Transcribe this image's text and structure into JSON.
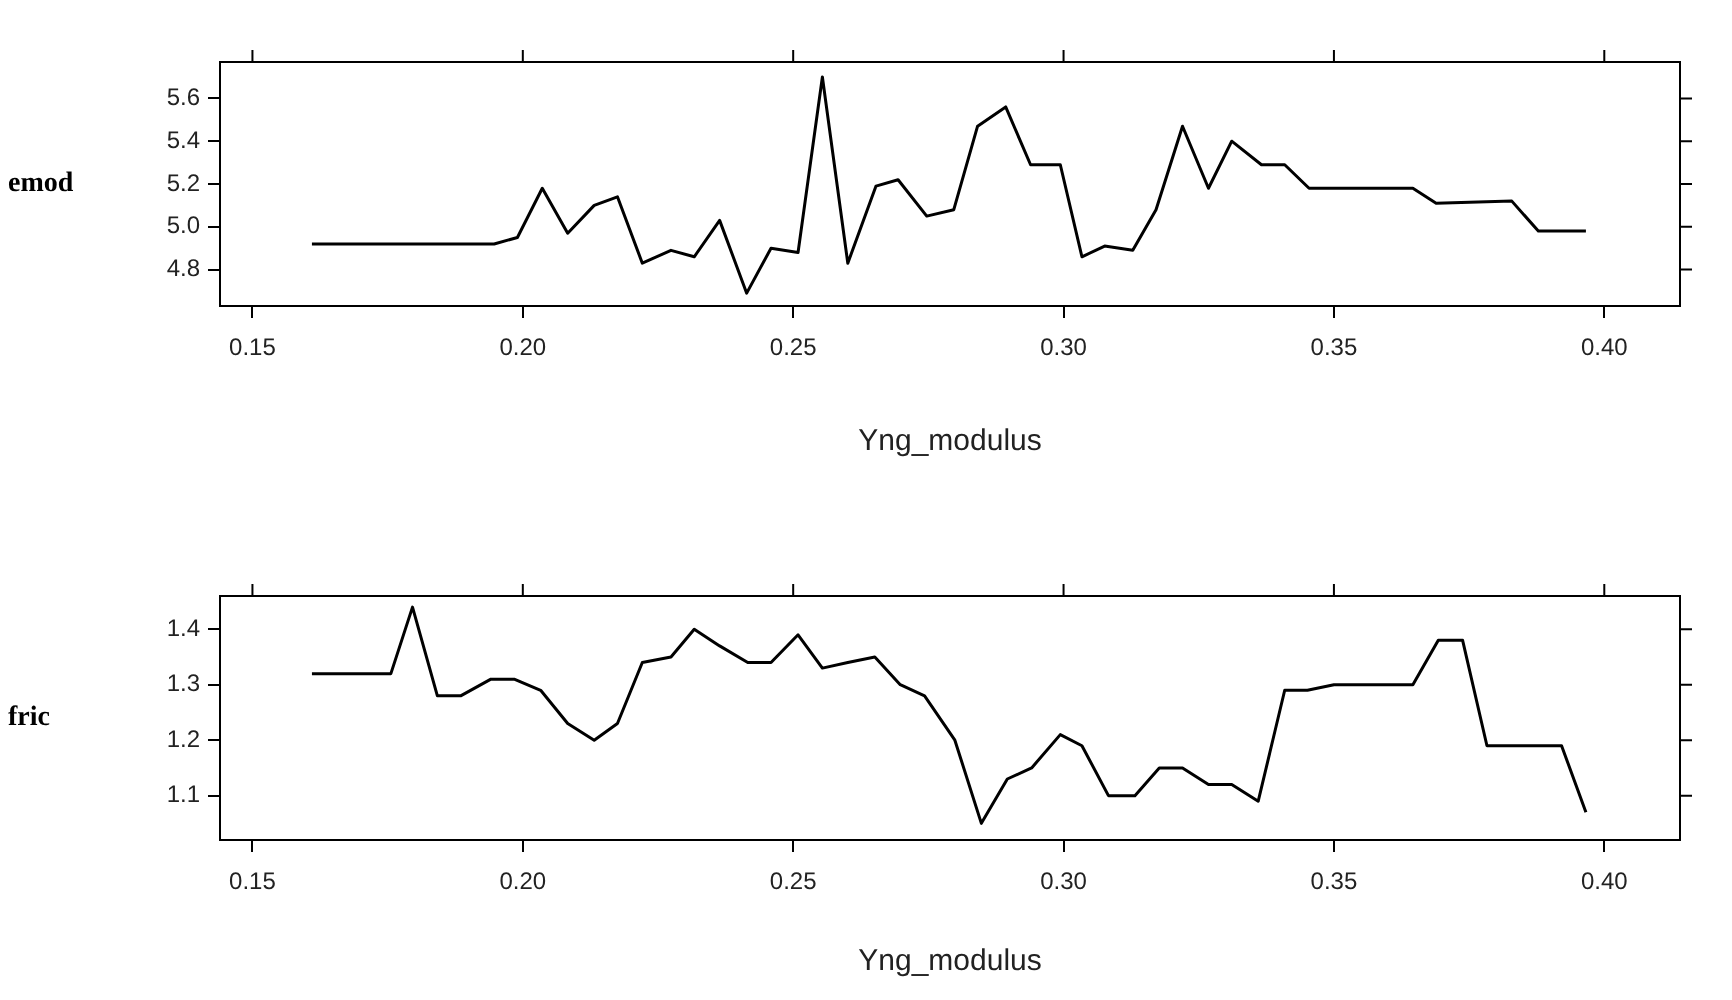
{
  "chart_data": [
    {
      "type": "line",
      "xlabel": "Yng_modulus",
      "ylabel": "emod",
      "color": "#000000",
      "xlim": [
        0.144,
        0.414
      ],
      "ylim": [
        4.63,
        5.77
      ],
      "xticks": [
        0.15,
        {
          "value": 0.2,
          "label": "0.20"
        },
        0.25,
        {
          "value": 0.3,
          "label": "0.30"
        },
        0.35,
        {
          "value": 0.4,
          "label": "0.40"
        }
      ],
      "yticks": [
        4.8,
        {
          "value": 5,
          "label": "5.0"
        },
        5.2,
        5.4,
        5.6
      ],
      "x": [
        0.161,
        0.1947,
        0.199,
        0.2036,
        0.2083,
        0.2132,
        0.2175,
        0.2221,
        0.2274,
        0.2317,
        0.2364,
        0.2414,
        0.2459,
        0.2509,
        0.2554,
        0.2601,
        0.2653,
        0.2694,
        0.2747,
        0.2797,
        0.2841,
        0.2893,
        0.2939,
        0.2994,
        0.3034,
        0.3076,
        0.3128,
        0.3171,
        0.322,
        0.3268,
        0.3311,
        0.3366,
        0.3409,
        0.3454,
        0.3646,
        0.3689,
        0.3829,
        0.3878,
        0.3966
      ],
      "values": [
        4.92,
        4.92,
        4.95,
        5.18,
        4.97,
        5.1,
        5.14,
        4.83,
        4.89,
        4.86,
        5.03,
        4.69,
        4.9,
        4.88,
        5.7,
        4.83,
        5.19,
        5.22,
        5.05,
        5.08,
        5.47,
        5.56,
        5.29,
        5.29,
        4.86,
        4.91,
        4.89,
        5.08,
        5.47,
        5.18,
        5.4,
        5.29,
        5.29,
        5.18,
        5.18,
        5.11,
        5.12,
        4.98,
        4.98
      ]
    },
    {
      "type": "line",
      "xlabel": "Yng_modulus",
      "ylabel": "fric",
      "color": "#000000",
      "xlim": [
        0.144,
        0.414
      ],
      "ylim": [
        1.02,
        1.46
      ],
      "xticks": [
        0.15,
        {
          "value": 0.2,
          "label": "0.20"
        },
        0.25,
        {
          "value": 0.3,
          "label": "0.30"
        },
        0.35,
        {
          "value": 0.4,
          "label": "0.40"
        }
      ],
      "yticks": [
        1.1,
        1.2,
        1.3,
        1.4
      ],
      "x": [
        0.161,
        0.1756,
        0.1796,
        0.1842,
        0.1885,
        0.1941,
        0.1984,
        0.2033,
        0.2083,
        0.2132,
        0.2175,
        0.2221,
        0.2274,
        0.2317,
        0.2364,
        0.2416,
        0.2459,
        0.2509,
        0.2554,
        0.2601,
        0.2651,
        0.2698,
        0.2743,
        0.2799,
        0.2848,
        0.2896,
        0.2941,
        0.2994,
        0.3034,
        0.3083,
        0.3132,
        0.3177,
        0.322,
        0.3268,
        0.3311,
        0.336,
        0.3409,
        0.3451,
        0.35,
        0.3549,
        0.3646,
        0.3693,
        0.3738,
        0.3783,
        0.3921,
        0.3966
      ],
      "values": [
        1.32,
        1.32,
        1.44,
        1.28,
        1.28,
        1.31,
        1.31,
        1.29,
        1.23,
        1.2,
        1.23,
        1.34,
        1.35,
        1.4,
        1.37,
        1.34,
        1.34,
        1.39,
        1.33,
        1.34,
        1.35,
        1.3,
        1.28,
        1.2,
        1.05,
        1.13,
        1.15,
        1.21,
        1.19,
        1.1,
        1.1,
        1.15,
        1.15,
        1.12,
        1.12,
        1.09,
        1.29,
        1.29,
        1.3,
        1.3,
        1.3,
        1.38,
        1.38,
        1.19,
        1.19,
        1.07
      ]
    }
  ]
}
